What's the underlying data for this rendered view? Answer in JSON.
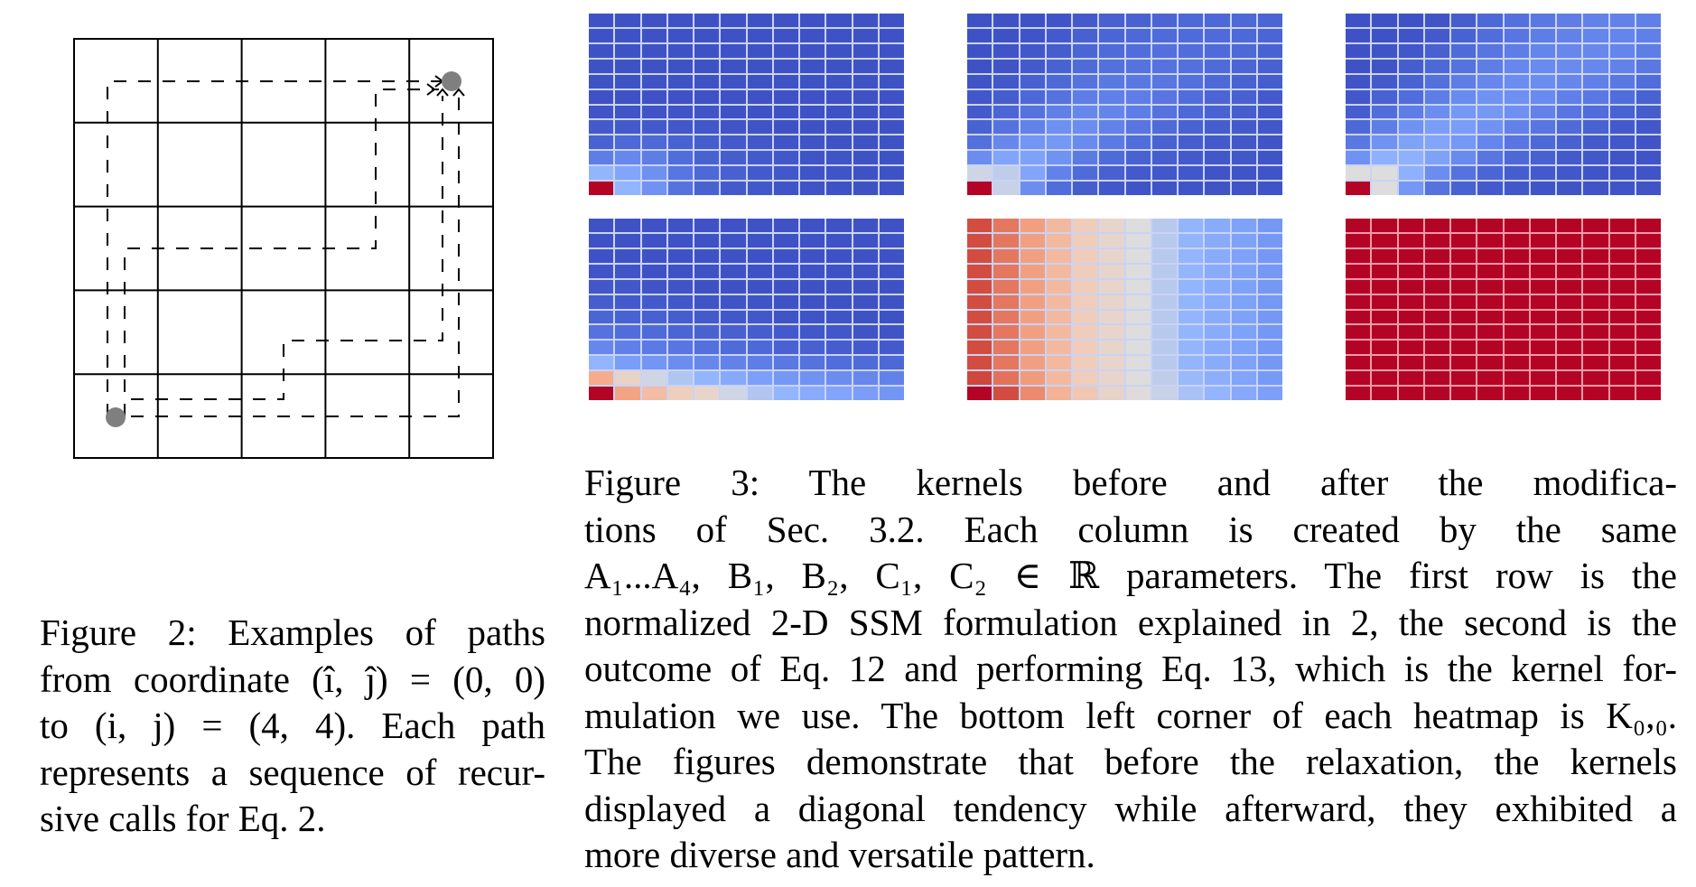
{
  "figure2": {
    "label": "Figure 2:",
    "grid": {
      "rows": 5,
      "cols": 5,
      "start": [
        0,
        0
      ],
      "end": [
        4,
        4
      ]
    },
    "caption_lines": [
      "Figure 2:  Examples of paths",
      "from coordinate (î, ĵ) = (0, 0)",
      "to (i, j) = (4, 4).  Each path",
      "represents a sequence of recur-",
      "sive calls for Eq. 2."
    ]
  },
  "figure3": {
    "label": "Figure 3:",
    "caption_lines": [
      "Figure 3:  The kernels before and after the modifica-",
      "tions of Sec. 3.2.  Each column is created by the same",
      "A₁...A₄, B₁, B₂, C₁, C₂ ∈ ℝ parameters.  The first row is the",
      "normalized 2-D SSM formulation explained in 2, the second is the",
      "outcome of Eq. 12 and performing Eq. 13, which is the kernel for-",
      "mulation we use. The bottom left corner of each heatmap is K₀,₀.",
      "The figures demonstrate that before the relaxation, the kernels",
      "displayed a diagonal tendency while afterward, they exhibited a",
      "more diverse and versatile pattern."
    ]
  },
  "chart_data": [
    {
      "type": "heatmap",
      "title": "Figure 3 row 1, column 1 (normalized 2-D SSM)",
      "colormap": "coolwarm",
      "rows": 12,
      "cols": 12,
      "origin": "bottom-left is K_0,0",
      "values": [
        [
          0.02,
          0.02,
          0.02,
          0.02,
          0.02,
          0.02,
          0.02,
          0.02,
          0.02,
          0.02,
          0.02,
          0.02
        ],
        [
          0.02,
          0.02,
          0.02,
          0.02,
          0.02,
          0.02,
          0.02,
          0.02,
          0.02,
          0.02,
          0.02,
          0.02
        ],
        [
          0.02,
          0.02,
          0.02,
          0.02,
          0.02,
          0.02,
          0.02,
          0.02,
          0.02,
          0.02,
          0.02,
          0.02
        ],
        [
          0.02,
          0.02,
          0.02,
          0.02,
          0.02,
          0.02,
          0.02,
          0.02,
          0.02,
          0.02,
          0.02,
          0.02
        ],
        [
          0.02,
          0.02,
          0.02,
          0.02,
          0.02,
          0.02,
          0.02,
          0.02,
          0.02,
          0.02,
          0.02,
          0.02
        ],
        [
          0.02,
          0.02,
          0.02,
          0.02,
          0.02,
          0.02,
          0.02,
          0.02,
          0.02,
          0.02,
          0.02,
          0.02
        ],
        [
          0.03,
          0.03,
          0.03,
          0.03,
          0.03,
          0.02,
          0.02,
          0.02,
          0.02,
          0.02,
          0.02,
          0.02
        ],
        [
          0.05,
          0.05,
          0.05,
          0.04,
          0.04,
          0.03,
          0.03,
          0.02,
          0.02,
          0.02,
          0.02,
          0.02
        ],
        [
          0.08,
          0.1,
          0.1,
          0.08,
          0.06,
          0.05,
          0.04,
          0.03,
          0.03,
          0.02,
          0.02,
          0.02
        ],
        [
          0.18,
          0.22,
          0.18,
          0.12,
          0.08,
          0.06,
          0.05,
          0.04,
          0.03,
          0.03,
          0.02,
          0.02
        ],
        [
          0.4,
          0.33,
          0.25,
          0.15,
          0.1,
          0.07,
          0.05,
          0.04,
          0.03,
          0.03,
          0.02,
          0.02
        ],
        [
          1.0,
          0.4,
          0.26,
          0.14,
          0.08,
          0.05,
          0.04,
          0.03,
          0.03,
          0.02,
          0.02,
          0.02
        ]
      ]
    },
    {
      "type": "heatmap",
      "title": "Figure 3 row 1, column 2 (normalized 2-D SSM)",
      "colormap": "coolwarm",
      "rows": 12,
      "cols": 12,
      "values": [
        [
          0.02,
          0.02,
          0.02,
          0.03,
          0.05,
          0.07,
          0.08,
          0.09,
          0.1,
          0.1,
          0.1,
          0.09
        ],
        [
          0.02,
          0.02,
          0.03,
          0.05,
          0.07,
          0.09,
          0.1,
          0.11,
          0.11,
          0.11,
          0.1,
          0.09
        ],
        [
          0.02,
          0.03,
          0.04,
          0.06,
          0.09,
          0.11,
          0.12,
          0.13,
          0.12,
          0.11,
          0.1,
          0.08
        ],
        [
          0.02,
          0.03,
          0.05,
          0.08,
          0.11,
          0.13,
          0.14,
          0.14,
          0.13,
          0.11,
          0.09,
          0.07
        ],
        [
          0.03,
          0.04,
          0.07,
          0.1,
          0.14,
          0.16,
          0.16,
          0.15,
          0.13,
          0.1,
          0.08,
          0.06
        ],
        [
          0.04,
          0.06,
          0.1,
          0.14,
          0.18,
          0.19,
          0.18,
          0.15,
          0.12,
          0.09,
          0.07,
          0.05
        ],
        [
          0.05,
          0.09,
          0.14,
          0.19,
          0.22,
          0.21,
          0.18,
          0.14,
          0.1,
          0.08,
          0.06,
          0.04
        ],
        [
          0.08,
          0.14,
          0.2,
          0.25,
          0.24,
          0.2,
          0.15,
          0.11,
          0.08,
          0.06,
          0.05,
          0.04
        ],
        [
          0.13,
          0.22,
          0.27,
          0.28,
          0.23,
          0.17,
          0.12,
          0.08,
          0.06,
          0.05,
          0.04,
          0.03
        ],
        [
          0.24,
          0.33,
          0.32,
          0.26,
          0.17,
          0.11,
          0.08,
          0.06,
          0.05,
          0.04,
          0.04,
          0.03
        ],
        [
          0.48,
          0.46,
          0.33,
          0.2,
          0.11,
          0.07,
          0.05,
          0.04,
          0.04,
          0.03,
          0.03,
          0.03
        ],
        [
          1.0,
          0.47,
          0.24,
          0.12,
          0.06,
          0.04,
          0.03,
          0.03,
          0.03,
          0.03,
          0.03,
          0.03
        ]
      ]
    },
    {
      "type": "heatmap",
      "title": "Figure 3 row 1, column 3 (normalized 2-D SSM)",
      "colormap": "coolwarm",
      "rows": 12,
      "cols": 12,
      "values": [
        [
          0.02,
          0.02,
          0.02,
          0.03,
          0.06,
          0.1,
          0.13,
          0.16,
          0.18,
          0.2,
          0.2,
          0.19
        ],
        [
          0.02,
          0.02,
          0.03,
          0.05,
          0.08,
          0.12,
          0.15,
          0.18,
          0.2,
          0.21,
          0.21,
          0.19
        ],
        [
          0.02,
          0.03,
          0.04,
          0.07,
          0.11,
          0.15,
          0.18,
          0.21,
          0.22,
          0.22,
          0.21,
          0.18
        ],
        [
          0.02,
          0.03,
          0.06,
          0.1,
          0.14,
          0.18,
          0.22,
          0.23,
          0.23,
          0.22,
          0.2,
          0.16
        ],
        [
          0.03,
          0.05,
          0.08,
          0.13,
          0.18,
          0.22,
          0.24,
          0.24,
          0.22,
          0.19,
          0.16,
          0.12
        ],
        [
          0.04,
          0.08,
          0.12,
          0.18,
          0.23,
          0.26,
          0.25,
          0.23,
          0.19,
          0.16,
          0.12,
          0.08
        ],
        [
          0.06,
          0.12,
          0.18,
          0.24,
          0.28,
          0.28,
          0.25,
          0.2,
          0.15,
          0.12,
          0.08,
          0.06
        ],
        [
          0.1,
          0.18,
          0.26,
          0.3,
          0.3,
          0.26,
          0.2,
          0.15,
          0.11,
          0.08,
          0.05,
          0.04
        ],
        [
          0.16,
          0.26,
          0.32,
          0.33,
          0.28,
          0.21,
          0.15,
          0.1,
          0.07,
          0.05,
          0.04,
          0.03
        ],
        [
          0.26,
          0.38,
          0.38,
          0.32,
          0.23,
          0.15,
          0.1,
          0.07,
          0.05,
          0.04,
          0.03,
          0.03
        ],
        [
          0.5,
          0.5,
          0.38,
          0.24,
          0.14,
          0.09,
          0.06,
          0.05,
          0.04,
          0.03,
          0.03,
          0.03
        ],
        [
          1.0,
          0.5,
          0.28,
          0.14,
          0.08,
          0.05,
          0.04,
          0.03,
          0.03,
          0.03,
          0.03,
          0.03
        ]
      ]
    },
    {
      "type": "heatmap",
      "title": "Figure 3 row 2, column 1 (kernel after Eq. 12 / Eq. 13)",
      "colormap": "coolwarm",
      "rows": 12,
      "cols": 12,
      "values": [
        [
          0.02,
          0.02,
          0.02,
          0.02,
          0.02,
          0.02,
          0.02,
          0.02,
          0.02,
          0.02,
          0.02,
          0.02
        ],
        [
          0.02,
          0.02,
          0.02,
          0.02,
          0.02,
          0.02,
          0.02,
          0.02,
          0.02,
          0.02,
          0.02,
          0.02
        ],
        [
          0.02,
          0.02,
          0.02,
          0.02,
          0.02,
          0.02,
          0.02,
          0.02,
          0.02,
          0.02,
          0.02,
          0.02
        ],
        [
          0.03,
          0.03,
          0.02,
          0.02,
          0.02,
          0.02,
          0.02,
          0.02,
          0.02,
          0.02,
          0.02,
          0.02
        ],
        [
          0.04,
          0.04,
          0.03,
          0.03,
          0.02,
          0.02,
          0.02,
          0.02,
          0.02,
          0.02,
          0.02,
          0.02
        ],
        [
          0.06,
          0.05,
          0.05,
          0.04,
          0.03,
          0.03,
          0.03,
          0.02,
          0.02,
          0.02,
          0.02,
          0.02
        ],
        [
          0.09,
          0.08,
          0.07,
          0.06,
          0.05,
          0.04,
          0.04,
          0.03,
          0.03,
          0.03,
          0.02,
          0.02
        ],
        [
          0.14,
          0.12,
          0.11,
          0.09,
          0.08,
          0.07,
          0.06,
          0.05,
          0.04,
          0.04,
          0.03,
          0.03
        ],
        [
          0.22,
          0.19,
          0.17,
          0.15,
          0.13,
          0.11,
          0.1,
          0.08,
          0.07,
          0.06,
          0.05,
          0.05
        ],
        [
          0.4,
          0.3,
          0.27,
          0.24,
          0.22,
          0.2,
          0.18,
          0.16,
          0.14,
          0.12,
          0.11,
          0.1
        ],
        [
          0.7,
          0.56,
          0.48,
          0.44,
          0.4,
          0.35,
          0.31,
          0.28,
          0.26,
          0.24,
          0.22,
          0.2
        ],
        [
          1.0,
          0.72,
          0.65,
          0.59,
          0.55,
          0.48,
          0.44,
          0.4,
          0.36,
          0.33,
          0.3,
          0.27
        ]
      ]
    },
    {
      "type": "heatmap",
      "title": "Figure 3 row 2, column 2 (kernel after Eq. 12 / Eq. 13)",
      "colormap": "coolwarm",
      "rows": 12,
      "cols": 12,
      "values": [
        [
          0.9,
          0.82,
          0.73,
          0.66,
          0.6,
          0.55,
          0.5,
          0.45,
          0.4,
          0.36,
          0.32,
          0.28
        ],
        [
          0.9,
          0.82,
          0.73,
          0.66,
          0.6,
          0.55,
          0.5,
          0.45,
          0.4,
          0.36,
          0.32,
          0.28
        ],
        [
          0.9,
          0.82,
          0.73,
          0.66,
          0.6,
          0.55,
          0.5,
          0.45,
          0.4,
          0.36,
          0.32,
          0.28
        ],
        [
          0.9,
          0.82,
          0.73,
          0.66,
          0.6,
          0.55,
          0.5,
          0.45,
          0.4,
          0.36,
          0.32,
          0.28
        ],
        [
          0.9,
          0.82,
          0.73,
          0.66,
          0.6,
          0.55,
          0.5,
          0.45,
          0.4,
          0.36,
          0.32,
          0.28
        ],
        [
          0.9,
          0.82,
          0.73,
          0.66,
          0.6,
          0.55,
          0.5,
          0.45,
          0.4,
          0.36,
          0.32,
          0.28
        ],
        [
          0.9,
          0.82,
          0.73,
          0.66,
          0.6,
          0.55,
          0.5,
          0.45,
          0.4,
          0.36,
          0.32,
          0.28
        ],
        [
          0.9,
          0.82,
          0.73,
          0.66,
          0.6,
          0.55,
          0.5,
          0.45,
          0.4,
          0.36,
          0.32,
          0.28
        ],
        [
          0.9,
          0.82,
          0.73,
          0.66,
          0.6,
          0.55,
          0.5,
          0.45,
          0.4,
          0.36,
          0.32,
          0.28
        ],
        [
          0.9,
          0.82,
          0.73,
          0.66,
          0.6,
          0.55,
          0.5,
          0.45,
          0.4,
          0.36,
          0.32,
          0.28
        ],
        [
          0.91,
          0.83,
          0.74,
          0.66,
          0.6,
          0.55,
          0.5,
          0.46,
          0.41,
          0.37,
          0.33,
          0.29
        ],
        [
          1.0,
          0.9,
          0.78,
          0.68,
          0.62,
          0.56,
          0.51,
          0.47,
          0.43,
          0.4,
          0.35,
          0.31
        ]
      ]
    },
    {
      "type": "heatmap",
      "title": "Figure 3 row 2, column 3 (kernel after Eq. 12 / Eq. 13)",
      "colormap": "coolwarm",
      "rows": 12,
      "cols": 12,
      "values": [
        [
          1,
          1,
          1,
          1,
          1,
          1,
          1,
          1,
          1,
          1,
          1,
          1
        ],
        [
          1,
          1,
          1,
          1,
          1,
          1,
          1,
          1,
          1,
          1,
          1,
          1
        ],
        [
          1,
          1,
          1,
          1,
          1,
          1,
          1,
          1,
          1,
          1,
          1,
          1
        ],
        [
          1,
          1,
          1,
          1,
          1,
          1,
          1,
          1,
          1,
          1,
          1,
          1
        ],
        [
          1,
          1,
          1,
          1,
          1,
          1,
          1,
          1,
          1,
          1,
          1,
          1
        ],
        [
          1,
          1,
          1,
          1,
          1,
          1,
          1,
          1,
          1,
          1,
          1,
          1
        ],
        [
          1,
          1,
          1,
          1,
          1,
          1,
          1,
          1,
          1,
          1,
          1,
          1
        ],
        [
          1,
          1,
          1,
          1,
          1,
          1,
          1,
          1,
          1,
          1,
          1,
          1
        ],
        [
          1,
          1,
          1,
          1,
          1,
          1,
          1,
          1,
          1,
          1,
          1,
          1
        ],
        [
          1,
          1,
          1,
          1,
          1,
          1,
          1,
          1,
          1,
          1,
          1,
          1
        ],
        [
          1,
          1,
          1,
          1,
          1,
          1,
          1,
          1,
          1,
          1,
          1,
          1
        ],
        [
          1,
          1,
          1,
          1,
          1,
          1,
          1,
          1,
          1,
          1,
          1,
          1
        ]
      ]
    }
  ]
}
